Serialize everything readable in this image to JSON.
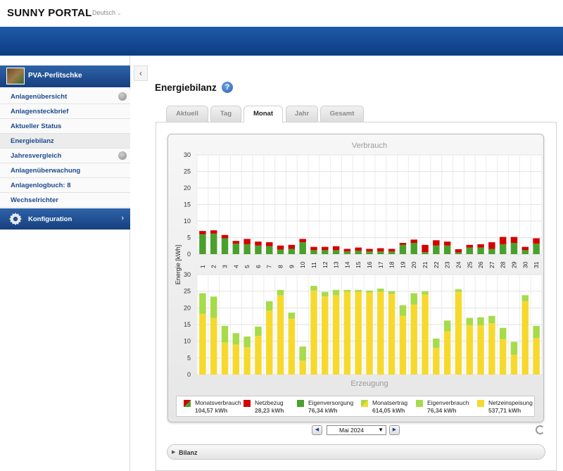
{
  "header": {
    "logo": "SUNNY PORTAL",
    "language": "Deutsch"
  },
  "sidebar": {
    "plant_name": "PVA-Perlitschke",
    "items": [
      {
        "label": "Anlagenübersicht",
        "globe": true
      },
      {
        "label": "Anlagensteckbrief",
        "globe": false
      },
      {
        "label": "Aktueller Status",
        "globe": false
      },
      {
        "label": "Energiebilanz",
        "globe": false,
        "active": true
      },
      {
        "label": "Jahresvergleich",
        "globe": true
      },
      {
        "label": "Anlagenüberwachung",
        "globe": false
      },
      {
        "label": "Anlagenlogbuch: 8",
        "globe": false
      },
      {
        "label": "Wechselrichter",
        "globe": false
      }
    ],
    "config_label": "Konfiguration"
  },
  "page": {
    "title": "Energiebilanz",
    "help_glyph": "?"
  },
  "tabs": [
    {
      "label": "Aktuell",
      "active": false
    },
    {
      "label": "Tag",
      "active": false
    },
    {
      "label": "Monat",
      "active": true
    },
    {
      "label": "Jahr",
      "active": false
    },
    {
      "label": "Gesamt",
      "active": false
    }
  ],
  "chart_data": {
    "type": "bar",
    "stacked": true,
    "ylabel": "Energie [kWh]",
    "ylim": [
      0,
      30
    ],
    "yticks": [
      0,
      5,
      10,
      15,
      20,
      25,
      30
    ],
    "grid": true,
    "categories": [
      "1",
      "2",
      "3",
      "4",
      "5",
      "6",
      "7",
      "8",
      "9",
      "10",
      "11",
      "12",
      "13",
      "14",
      "15",
      "16",
      "17",
      "18",
      "19",
      "20",
      "21",
      "22",
      "23",
      "24",
      "25",
      "26",
      "27",
      "28",
      "29",
      "30",
      "31"
    ],
    "panels": [
      {
        "title": "Verbrauch",
        "series": [
          {
            "name": "Eigenversorgung",
            "color": "#4aa02c",
            "values": [
              6,
              6.2,
              4.8,
              3.2,
              3,
              2.6,
              2.4,
              1.4,
              1.6,
              3.6,
              1.2,
              1.2,
              1.2,
              0.8,
              1.0,
              0.8,
              0.8,
              0.8,
              2.8,
              3.4,
              0.6,
              2.6,
              2.6,
              0.5,
              2,
              2,
              1.6,
              3,
              3.4,
              1.2,
              3.2
            ]
          },
          {
            "name": "Netzbezug",
            "color": "#d40000",
            "values": [
              1,
              1,
              1,
              0.8,
              1.6,
              1.2,
              1.2,
              1.2,
              1.2,
              1,
              1,
              1,
              1.2,
              0.8,
              1,
              0.8,
              1,
              0.8,
              0.6,
              1,
              2.2,
              1.6,
              1.2,
              1,
              0.8,
              1,
              2,
              2.2,
              1.8,
              1,
              1.6
            ]
          }
        ]
      },
      {
        "title": "Erzeugung",
        "series": [
          {
            "name": "Netzeinspeisung",
            "color": "#f7d92e",
            "values": [
              18.2,
              17,
              9.6,
              9,
              8.2,
              11.6,
              19.2,
              23.8,
              16.8,
              4.2,
              25.2,
              23.4,
              23.8,
              24.8,
              24.8,
              24.6,
              24.8,
              24.2,
              17.6,
              21,
              24,
              8,
              13,
              24.8,
              14.8,
              14.8,
              15.4,
              10.6,
              6,
              22,
              11
            ]
          },
          {
            "name": "Eigenverbrauch",
            "color": "#a6db4a",
            "values": [
              6.2,
              6.4,
              5,
              3.4,
              3.2,
              2.8,
              2.8,
              1.6,
              1.8,
              4.2,
              1.4,
              1.4,
              1.6,
              0.6,
              0.6,
              0.6,
              1,
              0.8,
              3.2,
              3.4,
              1,
              2.8,
              3.2,
              0.8,
              2.2,
              2.4,
              2.2,
              3.4,
              3.8,
              1.8,
              3.6
            ]
          }
        ]
      }
    ],
    "legend": [
      {
        "name": "Monatsverbrauch",
        "value": "104,57 kWh",
        "swatch": "split"
      },
      {
        "name": "Netzbezug",
        "value": "28,23 kWh",
        "swatch": "#d40000"
      },
      {
        "name": "Eigenversorgung",
        "value": "76,34 kWh",
        "swatch": "#4aa02c"
      },
      {
        "name": "Monatsertrag",
        "value": "614,05 kWh",
        "swatch": "split2"
      },
      {
        "name": "Eigenverbrauch",
        "value": "76,34 kWh",
        "swatch": "#a6db4a"
      },
      {
        "name": "Netzeinspeisung",
        "value": "537,71 kWh",
        "swatch": "#f7d92e"
      }
    ]
  },
  "date_nav": {
    "selected_month": "Mai 2024",
    "prev": "◀",
    "next": "▶"
  },
  "bilanz_label": "Bilanz"
}
